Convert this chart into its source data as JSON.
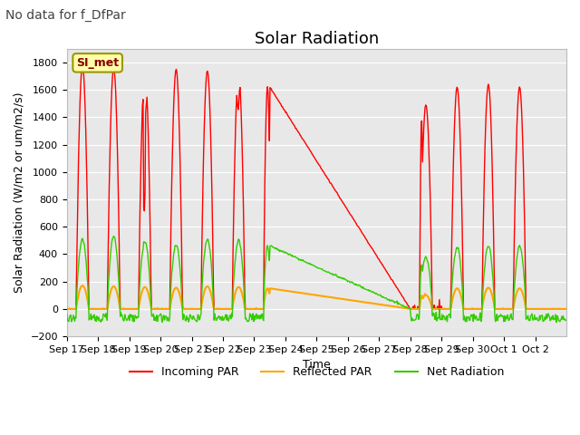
{
  "title": "Solar Radiation",
  "suptitle": "No data for f_DfPar",
  "ylabel": "Solar Radiation (W/m2 or um/m2/s)",
  "xlabel": "Time",
  "ylim": [
    -200,
    1900
  ],
  "yticks": [
    -200,
    0,
    200,
    400,
    600,
    800,
    1000,
    1200,
    1400,
    1600,
    1800
  ],
  "legend_label": "SI_met",
  "line_colors": {
    "incoming": "#ff0000",
    "reflected": "#ffa500",
    "net": "#33cc00"
  },
  "plot_bg_color": "#e8e8e8",
  "legend_items": [
    "Incoming PAR",
    "Reflected PAR",
    "Net Radiation"
  ],
  "day_labels": [
    "Sep 17",
    "Sep 18",
    "Sep 19",
    "Sep 20",
    "Sep 21",
    "Sep 22",
    "Sep 23",
    "Sep 24",
    "Sep 25",
    "Sep 26",
    "Sep 27",
    "Sep 28",
    "Sep 29",
    "Sep 30",
    "Oct 1",
    "Oct 2"
  ],
  "figsize": [
    6.4,
    4.8
  ],
  "dpi": 100,
  "title_fontsize": 13,
  "suptitle_fontsize": 10,
  "axis_fontsize": 9,
  "tick_fontsize": 8,
  "legend_fontsize": 9
}
